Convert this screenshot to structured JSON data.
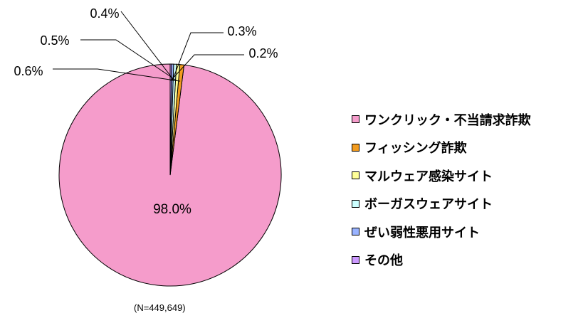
{
  "chart_data": {
    "type": "pie",
    "note": "(N=449,649)",
    "slices": [
      {
        "label": "ワンクリック・不当請求詐欺",
        "value": 98.0,
        "value_label": "98.0%",
        "color": "#F59CCB"
      },
      {
        "label": "フィッシング詐欺",
        "value": 0.6,
        "value_label": "0.6%",
        "color": "#F39C1F"
      },
      {
        "label": "マルウェア感染サイト",
        "value": 0.5,
        "value_label": "0.5%",
        "color": "#FFFF99"
      },
      {
        "label": "ボーガスウェアサイト",
        "value": 0.4,
        "value_label": "0.4%",
        "color": "#CCFFFF"
      },
      {
        "label": "ぜい弱性悪用サイト",
        "value": 0.3,
        "value_label": "0.3%",
        "color": "#99B3FF"
      },
      {
        "label": "その他",
        "value": 0.2,
        "value_label": "0.2%",
        "color": "#CC99FF"
      }
    ]
  }
}
